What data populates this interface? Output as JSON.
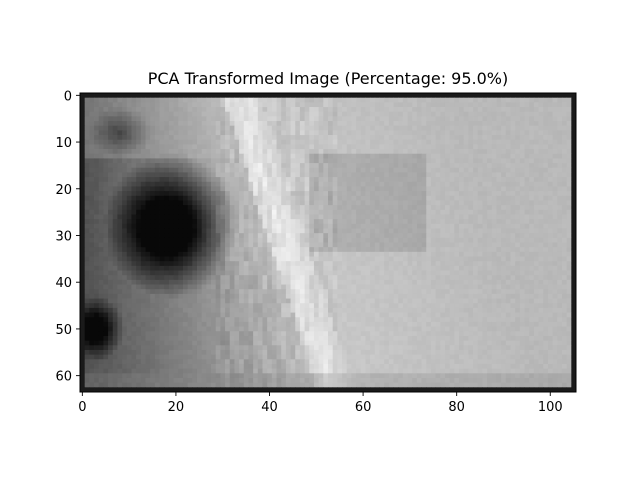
{
  "chart_data": {
    "type": "heatmap",
    "title": "PCA Transformed Image (Percentage: 95.0%)",
    "xlabel": "",
    "ylabel": "",
    "colormap": "gray",
    "grid": false,
    "image_shape": [
      64,
      106
    ],
    "xlim": [
      -0.5,
      105.5
    ],
    "ylim": [
      63.5,
      -0.5
    ],
    "x_ticks": [
      0,
      20,
      40,
      60,
      80,
      100
    ],
    "y_ticks": [
      0,
      10,
      20,
      30,
      40,
      50,
      60
    ],
    "x_tick_labels": [
      "0",
      "20",
      "40",
      "60",
      "80",
      "100"
    ],
    "y_tick_labels": [
      "0",
      "10",
      "20",
      "30",
      "40",
      "50",
      "60"
    ],
    "pixel_colors": {
      "border": "#1a1a1a",
      "dark_blob": "#0d0d0d",
      "bright_ridge": "#ebebeb",
      "background_right": "#b9b9b9"
    }
  }
}
